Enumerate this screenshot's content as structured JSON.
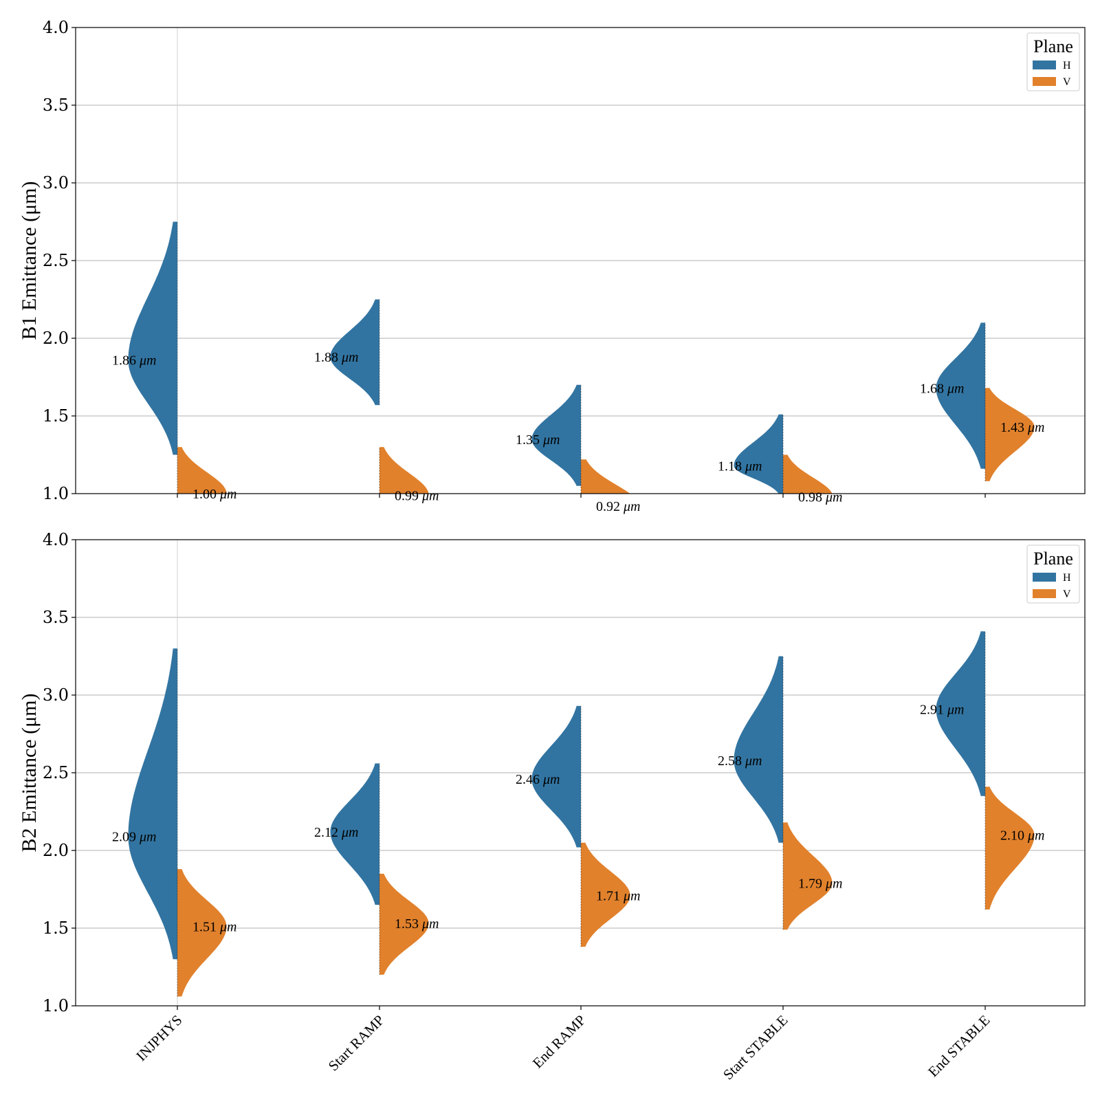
{
  "colors": {
    "H": "#3274a1",
    "V": "#e1812c",
    "grid": "#b0b0b0"
  },
  "legend": {
    "title": "Plane",
    "entries": [
      "H",
      "V"
    ],
    "placement": "top-right"
  },
  "unit": "μm",
  "chart_data": [
    {
      "type": "violin",
      "split": true,
      "ylabel": "B1 Emittance (μm)",
      "ylim": [
        1.0,
        4.0
      ],
      "yticks": [
        "1.0",
        "1.5",
        "2.0",
        "2.5",
        "3.0",
        "3.5",
        "4.0"
      ],
      "categories": [
        "INJPHYS",
        "Start RAMP",
        "End RAMP",
        "Start STABLE",
        "End STABLE"
      ],
      "grid": "horizontal",
      "series": [
        {
          "name": "H",
          "medians": [
            1.86,
            1.88,
            1.35,
            1.18,
            1.68
          ],
          "median_labels": [
            "1.86",
            "1.88",
            "1.35",
            "1.18",
            "1.68"
          ],
          "ranges": [
            [
              1.25,
              2.75
            ],
            [
              1.57,
              2.25
            ],
            [
              1.05,
              1.7
            ],
            [
              1.0,
              1.51
            ],
            [
              1.16,
              2.1
            ]
          ]
        },
        {
          "name": "V",
          "medians": [
            1.0,
            0.99,
            0.92,
            0.98,
            1.43
          ],
          "median_labels": [
            "1.00",
            "0.99",
            "0.92",
            "0.98",
            "1.43"
          ],
          "ranges": [
            [
              1.0,
              1.3
            ],
            [
              1.0,
              1.3
            ],
            [
              1.0,
              1.22
            ],
            [
              1.0,
              1.25
            ],
            [
              1.08,
              1.68
            ]
          ]
        }
      ]
    },
    {
      "type": "violin",
      "split": true,
      "ylabel": "B2 Emittance (μm)",
      "ylim": [
        1.0,
        4.0
      ],
      "yticks": [
        "1.0",
        "1.5",
        "2.0",
        "2.5",
        "3.0",
        "3.5",
        "4.0"
      ],
      "categories": [
        "INJPHYS",
        "Start RAMP",
        "End RAMP",
        "Start STABLE",
        "End STABLE"
      ],
      "grid": "horizontal",
      "series": [
        {
          "name": "H",
          "medians": [
            2.09,
            2.12,
            2.46,
            2.58,
            2.91
          ],
          "median_labels": [
            "2.09",
            "2.12",
            "2.46",
            "2.58",
            "2.91"
          ],
          "ranges": [
            [
              1.3,
              3.3
            ],
            [
              1.65,
              2.56
            ],
            [
              2.02,
              2.93
            ],
            [
              2.05,
              3.25
            ],
            [
              2.35,
              3.41
            ]
          ]
        },
        {
          "name": "V",
          "medians": [
            1.51,
            1.53,
            1.71,
            1.79,
            2.1
          ],
          "median_labels": [
            "1.51",
            "1.53",
            "1.71",
            "1.79",
            "2.10"
          ],
          "ranges": [
            [
              1.06,
              1.88
            ],
            [
              1.2,
              1.85
            ],
            [
              1.38,
              2.05
            ],
            [
              1.49,
              2.18
            ],
            [
              1.62,
              2.41
            ]
          ]
        }
      ]
    }
  ]
}
